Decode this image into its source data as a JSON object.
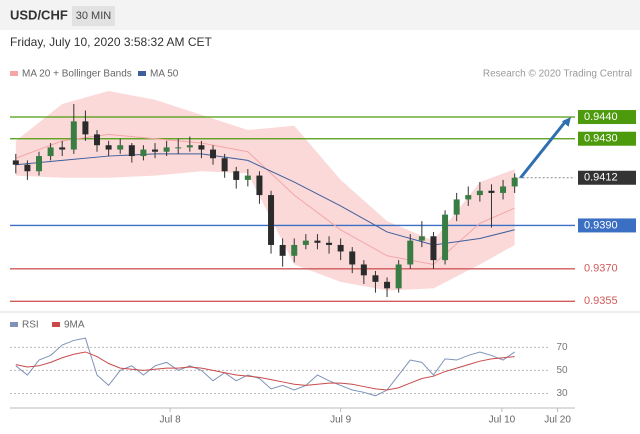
{
  "header": {
    "symbol": "USD/CHF",
    "interval": "30 MIN",
    "timestamp": "Friday, July 10, 2020 3:58:32 AM CET",
    "credit": "Research © 2020 Trading Central"
  },
  "chart_data": [
    {
      "type": "candlestick",
      "legend": [
        {
          "name": "MA 20 + Bollinger Bands",
          "color": "#f4a6a6"
        },
        {
          "name": "MA 50",
          "color": "#3e5f9c"
        }
      ],
      "open": [
        0.942,
        0.9418,
        0.9415,
        0.9422,
        0.9426,
        0.9425,
        0.9438,
        0.9432,
        0.9427,
        0.9425,
        0.9427,
        0.9422,
        0.9425,
        0.9424,
        0.9426,
        0.9426,
        0.9427,
        0.9425,
        0.9421,
        0.9415,
        0.9411,
        0.9413,
        0.9404,
        0.9381,
        0.9376,
        0.9381,
        0.9383,
        0.9382,
        0.9381,
        0.9378,
        0.9372,
        0.9367,
        0.9364,
        0.9361,
        0.9372,
        0.9383,
        0.9385,
        0.9374,
        0.9395,
        0.9402,
        0.9404,
        0.9406,
        0.9405,
        0.9408
      ],
      "high": [
        0.9423,
        0.942,
        0.9424,
        0.9428,
        0.9429,
        0.9446,
        0.9443,
        0.9434,
        0.9429,
        0.943,
        0.9428,
        0.9427,
        0.9428,
        0.9429,
        0.943,
        0.9431,
        0.9429,
        0.9427,
        0.9423,
        0.9417,
        0.9416,
        0.9415,
        0.9406,
        0.9384,
        0.9384,
        0.9386,
        0.9386,
        0.9385,
        0.9384,
        0.938,
        0.9374,
        0.9369,
        0.9366,
        0.9374,
        0.9386,
        0.9392,
        0.9387,
        0.9397,
        0.9405,
        0.9408,
        0.941,
        0.9409,
        0.9411,
        0.9414
      ],
      "low": [
        0.9414,
        0.9411,
        0.9413,
        0.942,
        0.9422,
        0.9423,
        0.9429,
        0.9424,
        0.9422,
        0.9423,
        0.9419,
        0.942,
        0.9421,
        0.9422,
        0.9423,
        0.9424,
        0.9421,
        0.9418,
        0.9412,
        0.9407,
        0.9408,
        0.94,
        0.9377,
        0.9371,
        0.9373,
        0.9379,
        0.9379,
        0.9377,
        0.9374,
        0.9368,
        0.9363,
        0.9359,
        0.9357,
        0.9359,
        0.937,
        0.938,
        0.937,
        0.9372,
        0.9392,
        0.9399,
        0.9401,
        0.9389,
        0.9402,
        0.9405
      ],
      "close": [
        0.9418,
        0.9415,
        0.9422,
        0.9426,
        0.9425,
        0.9438,
        0.9432,
        0.9427,
        0.9425,
        0.9427,
        0.9422,
        0.9425,
        0.9424,
        0.9426,
        0.9426,
        0.9427,
        0.9425,
        0.9421,
        0.9415,
        0.9411,
        0.9413,
        0.9404,
        0.9381,
        0.9376,
        0.9381,
        0.9383,
        0.9382,
        0.9381,
        0.9378,
        0.9372,
        0.9367,
        0.9364,
        0.9361,
        0.9372,
        0.9383,
        0.9385,
        0.9374,
        0.9395,
        0.9402,
        0.9404,
        0.9406,
        0.9405,
        0.9408,
        0.9412
      ],
      "up_color": "#3a7d44",
      "down_color": "#2b2b2b",
      "overlay_x": [
        0,
        4,
        8,
        12,
        16,
        20,
        24,
        28,
        32,
        36,
        40,
        43
      ],
      "band_upper": [
        0.9429,
        0.9446,
        0.9452,
        0.9448,
        0.9441,
        0.9434,
        0.9436,
        0.9411,
        0.9392,
        0.9383,
        0.941,
        0.9416
      ],
      "band_lower": [
        0.9413,
        0.9412,
        0.9412,
        0.9413,
        0.9415,
        0.9414,
        0.9372,
        0.9364,
        0.936,
        0.9361,
        0.9372,
        0.9381
      ],
      "ma20": [
        0.9421,
        0.9429,
        0.9432,
        0.943,
        0.9428,
        0.9424,
        0.9404,
        0.9388,
        0.9376,
        0.9372,
        0.9391,
        0.9398
      ],
      "ma50": [
        0.9418,
        0.942,
        0.9422,
        0.9423,
        0.9423,
        0.942,
        0.941,
        0.9399,
        0.9387,
        0.9381,
        0.9384,
        0.9388
      ],
      "band_color": "#fbd9d9",
      "levels": [
        {
          "value": 0.944,
          "label": "0.9440",
          "color": "#4d9a0c",
          "boxed": true,
          "dotted": false
        },
        {
          "value": 0.943,
          "label": "0.9430",
          "color": "#4d9a0c",
          "boxed": true,
          "dotted": false
        },
        {
          "value": 0.9412,
          "label": "0.9412",
          "color": "#333333",
          "boxed": true,
          "dotted": true
        },
        {
          "value": 0.939,
          "label": "0.9390",
          "color": "#3b6fc4",
          "boxed": true,
          "dotted": false
        },
        {
          "value": 0.937,
          "label": "0.9370",
          "color": "#d05a5a",
          "boxed": false,
          "dotted": false
        },
        {
          "value": 0.9355,
          "label": "0.9355",
          "color": "#d05a5a",
          "boxed": false,
          "dotted": false
        }
      ],
      "forecast_color": "#2f6fb0",
      "xlim": [
        -0.5,
        48.2
      ],
      "ylim": [
        0.9351,
        0.9464
      ]
    },
    {
      "type": "line",
      "series": [
        {
          "name": "RSI",
          "color": "#7f93b8",
          "values": [
            54,
            46,
            59,
            63,
            72,
            76,
            78,
            46,
            37,
            50,
            54,
            46,
            54,
            57,
            50,
            54,
            50,
            41,
            48,
            41,
            46,
            43,
            34,
            37,
            33,
            37,
            46,
            41,
            37,
            33,
            31,
            28,
            33,
            46,
            59,
            57,
            46,
            60,
            59,
            63,
            66,
            63,
            59,
            66
          ]
        },
        {
          "name": "9MA",
          "color": "#c94a4a",
          "values": [
            55,
            53,
            54,
            57,
            61,
            64,
            66,
            62,
            56,
            52,
            51,
            50,
            51,
            52,
            52,
            53,
            52,
            50,
            48,
            46,
            45,
            44,
            42,
            40,
            38,
            37,
            38,
            39,
            39,
            38,
            36,
            34,
            33,
            35,
            39,
            43,
            45,
            49,
            52,
            55,
            58,
            60,
            61,
            62
          ]
        }
      ],
      "xlim": [
        -0.5,
        48.2
      ],
      "ylim": [
        20,
        92
      ],
      "yticks": [
        30,
        50,
        70
      ],
      "xticks": [
        {
          "value": 13.3,
          "label": "Jul 8"
        },
        {
          "value": 28,
          "label": "Jul 9"
        },
        {
          "value": 41.9,
          "label": "Jul 10"
        },
        {
          "value": 46.7,
          "label": "Jul 20"
        }
      ]
    }
  ]
}
